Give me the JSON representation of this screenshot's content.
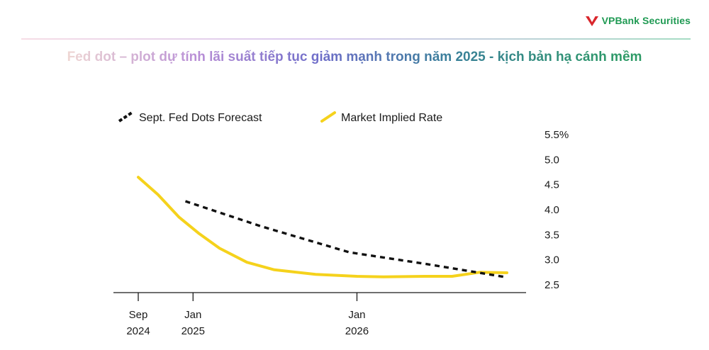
{
  "brand": {
    "name": "VPBank Securities",
    "color": "#1f9a53",
    "mark_color": "#d9262c"
  },
  "slide": {
    "title": "Fed dot – plot dự tính lãi suất tiếp tục giảm mạnh trong năm 2025 - kịch bản hạ cánh mềm"
  },
  "chart_data": {
    "type": "line",
    "title": "",
    "xlabel": "",
    "ylabel": "",
    "ylim": [
      2.5,
      5.5
    ],
    "y_ticks": [
      {
        "value": 5.5,
        "label": "5.5%"
      },
      {
        "value": 5.0,
        "label": "5.0"
      },
      {
        "value": 4.5,
        "label": "4.5"
      },
      {
        "value": 4.0,
        "label": "4.0"
      },
      {
        "value": 3.5,
        "label": "3.5"
      },
      {
        "value": 3.0,
        "label": "3.0"
      },
      {
        "value": 2.5,
        "label": "2.5"
      }
    ],
    "xlim": [
      "2024-09-01",
      "2026-12-01"
    ],
    "x_ticks": [
      {
        "date": "2024-09-01",
        "line1": "Sep",
        "line2": "2024"
      },
      {
        "date": "2025-01-01",
        "line1": "Jan",
        "line2": "2025"
      },
      {
        "date": "2026-01-01",
        "line1": "Jan",
        "line2": "2026"
      }
    ],
    "legend_position": "top-left",
    "grid": false,
    "series": [
      {
        "name": "Sept. Fed Dots Forecast",
        "style": "dashed",
        "color": "#111111",
        "points": [
          {
            "x": "2024-12-15",
            "y": 4.17
          },
          {
            "x": "2025-06-01",
            "y": 3.67
          },
          {
            "x": "2025-12-15",
            "y": 3.15
          },
          {
            "x": "2026-06-01",
            "y": 2.92
          },
          {
            "x": "2026-12-01",
            "y": 2.65
          }
        ]
      },
      {
        "name": "Market Implied Rate",
        "style": "solid",
        "color": "#f5d21c",
        "points": [
          {
            "x": "2024-09-01",
            "y": 4.65
          },
          {
            "x": "2024-10-15",
            "y": 4.3
          },
          {
            "x": "2024-12-01",
            "y": 3.85
          },
          {
            "x": "2025-01-15",
            "y": 3.52
          },
          {
            "x": "2025-03-01",
            "y": 3.23
          },
          {
            "x": "2025-05-01",
            "y": 2.95
          },
          {
            "x": "2025-07-01",
            "y": 2.8
          },
          {
            "x": "2025-10-01",
            "y": 2.71
          },
          {
            "x": "2026-01-01",
            "y": 2.67
          },
          {
            "x": "2026-03-01",
            "y": 2.66
          },
          {
            "x": "2026-06-01",
            "y": 2.67
          },
          {
            "x": "2026-08-01",
            "y": 2.67
          },
          {
            "x": "2026-10-01",
            "y": 2.75
          },
          {
            "x": "2026-12-01",
            "y": 2.74
          }
        ]
      }
    ]
  }
}
